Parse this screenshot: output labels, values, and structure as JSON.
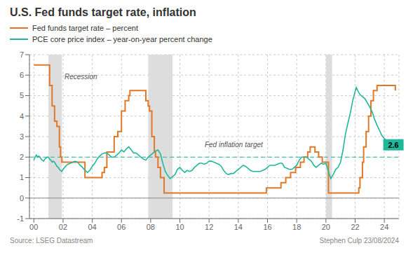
{
  "chart_data": {
    "type": "line",
    "title": "U.S. Fed funds target rate, inflation",
    "source": "Source: LSEG Datastream",
    "author": "Stephen Culp 23/08/2024",
    "xlim": [
      1999.7,
      2025.0
    ],
    "xticks": [
      {
        "value": 2000,
        "label": "00"
      },
      {
        "value": 2002,
        "label": "02"
      },
      {
        "value": 2004,
        "label": "04"
      },
      {
        "value": 2006,
        "label": "06"
      },
      {
        "value": 2008,
        "label": "08"
      },
      {
        "value": 2010,
        "label": "10"
      },
      {
        "value": 2012,
        "label": "12"
      },
      {
        "value": 2014,
        "label": "14"
      },
      {
        "value": 2016,
        "label": "16"
      },
      {
        "value": 2018,
        "label": "18"
      },
      {
        "value": 2020,
        "label": "20"
      },
      {
        "value": 2022,
        "label": "22"
      },
      {
        "value": 2024,
        "label": "24"
      }
    ],
    "ylim": [
      -1,
      7
    ],
    "yticks": [
      -1,
      0,
      1,
      2,
      3,
      4,
      5,
      6,
      7
    ],
    "grid": true,
    "recessions": {
      "color": "#dddddd",
      "ranges": [
        [
          2001.0,
          2001.92
        ],
        [
          2007.83,
          2009.5
        ],
        [
          2020.0,
          2020.42
        ]
      ]
    },
    "reference_lines": [
      {
        "y": 2.0,
        "color": "#20b89a",
        "line_style": "dashed"
      },
      {
        "y": 0,
        "color": "#888888",
        "line_style": "solid"
      }
    ],
    "annotations": [
      {
        "text": "Recession",
        "x": 2002.1,
        "y": 5.7
      },
      {
        "text": "Fed inflation target",
        "x": 2011.7,
        "y": 2.38
      },
      {
        "text": "2.6",
        "x": 2024.62,
        "y": 2.6,
        "color": "#20b89a"
      }
    ],
    "series": [
      {
        "name": "Fed funds target rate – percent",
        "color": "#e07828",
        "type": "step",
        "x": [
          2000.0,
          2001.0,
          2001.08,
          2001.25,
          2001.42,
          2001.58,
          2001.75,
          2001.83,
          2001.92,
          2003.5,
          2004.67,
          2004.83,
          2005.0,
          2005.5,
          2005.75,
          2006.0,
          2006.25,
          2006.5,
          2006.58,
          2007.58,
          2007.67,
          2007.83,
          2007.92,
          2008.08,
          2008.25,
          2008.33,
          2008.5,
          2008.67,
          2008.92,
          2015.92,
          2015.92,
          2016.92,
          2016.92,
          2017.25,
          2017.58,
          2017.92,
          2018.25,
          2018.5,
          2018.75,
          2018.92,
          2019.25,
          2019.5,
          2019.75,
          2020.0,
          2020.17,
          2022.17,
          2022.25,
          2022.33,
          2022.5,
          2022.58,
          2022.75,
          2022.92,
          2023.08,
          2023.25,
          2023.5,
          2024.67,
          2024.75
        ],
        "values": [
          6.5,
          6.5,
          5.5,
          4.5,
          3.75,
          3.5,
          2.5,
          2.0,
          1.75,
          1.0,
          1.25,
          1.5,
          2.25,
          3.0,
          3.25,
          4.25,
          4.75,
          5.0,
          5.25,
          5.25,
          4.75,
          4.5,
          4.25,
          3.0,
          2.25,
          2.0,
          1.5,
          1.0,
          0.25,
          0.25,
          0.5,
          0.5,
          0.75,
          1.0,
          1.25,
          1.5,
          1.75,
          2.0,
          2.25,
          2.5,
          2.25,
          2.0,
          1.75,
          1.75,
          0.25,
          0.25,
          0.5,
          1.0,
          1.75,
          2.5,
          3.25,
          4.0,
          4.75,
          5.25,
          5.5,
          5.5,
          5.25
        ]
      },
      {
        "name": "PCE core price index – year-on-year percent change",
        "color": "#20b89a",
        "type": "line",
        "x": [
          2000.0,
          2000.08,
          2000.17,
          2000.25,
          2000.33,
          2000.42,
          2000.5,
          2000.58,
          2000.67,
          2000.75,
          2000.83,
          2000.92,
          2001.0,
          2001.08,
          2001.17,
          2001.25,
          2001.33,
          2001.42,
          2001.5,
          2001.58,
          2001.67,
          2001.75,
          2001.83,
          2001.92,
          2002.0,
          2002.17,
          2002.33,
          2002.5,
          2002.67,
          2002.83,
          2003.0,
          2003.17,
          2003.33,
          2003.5,
          2003.67,
          2003.83,
          2004.0,
          2004.17,
          2004.33,
          2004.5,
          2004.67,
          2004.83,
          2005.0,
          2005.17,
          2005.33,
          2005.5,
          2005.67,
          2005.83,
          2006.0,
          2006.17,
          2006.33,
          2006.5,
          2006.67,
          2006.83,
          2007.0,
          2007.17,
          2007.33,
          2007.5,
          2007.67,
          2007.83,
          2008.0,
          2008.17,
          2008.33,
          2008.5,
          2008.67,
          2008.83,
          2009.0,
          2009.17,
          2009.33,
          2009.5,
          2009.67,
          2009.83,
          2010.0,
          2010.17,
          2010.33,
          2010.5,
          2010.67,
          2010.83,
          2011.0,
          2011.17,
          2011.33,
          2011.5,
          2011.67,
          2011.83,
          2012.0,
          2012.17,
          2012.33,
          2012.5,
          2012.67,
          2012.83,
          2013.0,
          2013.17,
          2013.33,
          2013.5,
          2013.67,
          2013.83,
          2014.0,
          2014.17,
          2014.33,
          2014.5,
          2014.67,
          2014.83,
          2015.0,
          2015.17,
          2015.33,
          2015.5,
          2015.67,
          2015.83,
          2016.0,
          2016.17,
          2016.33,
          2016.5,
          2016.67,
          2016.83,
          2017.0,
          2017.17,
          2017.33,
          2017.5,
          2017.67,
          2017.83,
          2018.0,
          2018.17,
          2018.33,
          2018.5,
          2018.67,
          2018.83,
          2019.0,
          2019.17,
          2019.33,
          2019.5,
          2019.67,
          2019.83,
          2020.0,
          2020.17,
          2020.33,
          2020.5,
          2020.67,
          2020.83,
          2021.0,
          2021.17,
          2021.33,
          2021.5,
          2021.67,
          2021.83,
          2022.0,
          2022.08,
          2022.17,
          2022.33,
          2022.5,
          2022.67,
          2022.83,
          2023.0,
          2023.17,
          2023.33,
          2023.5,
          2023.67,
          2023.83,
          2024.0,
          2024.17,
          2024.33,
          2024.5
        ],
        "values": [
          1.85,
          2.0,
          2.1,
          2.0,
          2.05,
          2.0,
          1.9,
          1.85,
          1.8,
          1.9,
          1.95,
          2.0,
          2.0,
          1.9,
          1.85,
          1.75,
          1.8,
          1.75,
          1.65,
          1.55,
          1.5,
          1.4,
          1.35,
          1.3,
          1.4,
          1.55,
          1.65,
          1.7,
          1.75,
          1.8,
          1.75,
          1.6,
          1.5,
          1.35,
          1.25,
          1.35,
          1.55,
          1.7,
          1.9,
          2.05,
          2.15,
          2.2,
          2.2,
          2.1,
          2.0,
          2.0,
          2.1,
          2.2,
          2.35,
          2.25,
          2.4,
          2.5,
          2.35,
          2.2,
          2.2,
          2.1,
          2.0,
          1.9,
          1.85,
          2.0,
          2.1,
          2.2,
          2.3,
          2.35,
          2.15,
          1.7,
          1.3,
          1.1,
          0.95,
          1.05,
          1.15,
          1.4,
          1.5,
          1.35,
          1.25,
          1.35,
          1.3,
          1.35,
          1.5,
          1.6,
          1.7,
          1.7,
          1.65,
          1.7,
          1.8,
          1.8,
          1.75,
          1.7,
          1.65,
          1.55,
          1.35,
          1.2,
          1.15,
          1.2,
          1.2,
          1.3,
          1.4,
          1.5,
          1.6,
          1.55,
          1.45,
          1.35,
          1.3,
          1.3,
          1.3,
          1.3,
          1.35,
          1.4,
          1.5,
          1.6,
          1.6,
          1.6,
          1.65,
          1.7,
          1.7,
          1.5,
          1.45,
          1.4,
          1.4,
          1.5,
          1.6,
          1.85,
          2.0,
          2.0,
          2.0,
          1.9,
          1.8,
          1.6,
          1.5,
          1.6,
          1.7,
          1.65,
          1.7,
          1.3,
          0.95,
          1.15,
          1.4,
          1.5,
          1.75,
          2.35,
          3.1,
          3.65,
          4.15,
          4.75,
          5.2,
          5.4,
          5.25,
          5.05,
          4.95,
          4.85,
          4.65,
          4.45,
          4.2,
          3.85,
          3.55,
          3.3,
          3.05,
          2.9,
          2.8,
          2.7,
          2.6
        ]
      }
    ]
  }
}
